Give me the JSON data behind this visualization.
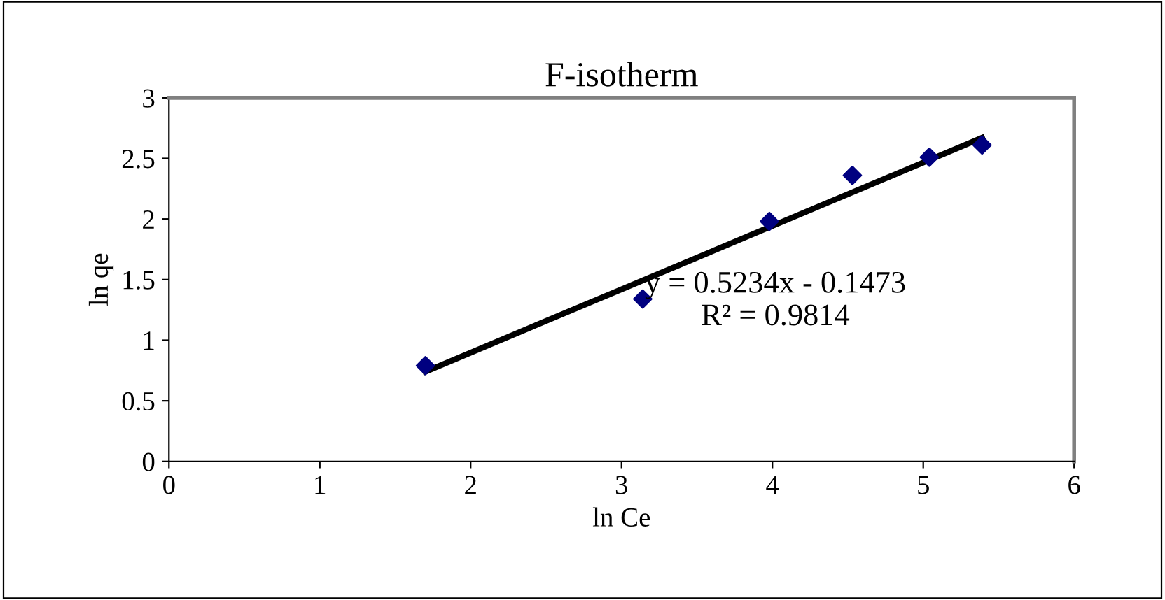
{
  "chart_data": {
    "type": "scatter",
    "title": "F-isotherm",
    "xlabel": "ln Ce",
    "ylabel": "ln qe",
    "xlim": [
      0,
      6
    ],
    "xticks": [
      0,
      1,
      2,
      3,
      4,
      5,
      6
    ],
    "ylim": [
      0,
      3
    ],
    "yticks": [
      0,
      0.5,
      1,
      1.5,
      2,
      2.5,
      3
    ],
    "grid": false,
    "legend": false,
    "series": [
      {
        "color": "#000080",
        "marker": "diamond",
        "x": [
          1.7,
          3.14,
          3.98,
          4.53,
          5.04,
          5.39
        ],
        "values": [
          0.79,
          1.34,
          1.98,
          2.36,
          2.51,
          2.61
        ]
      },
      {
        "type": "line",
        "color": "#000000",
        "marker": "none",
        "line_style": "solid",
        "x": [
          1.7,
          5.39
        ],
        "values": [
          0.74,
          2.67
        ]
      }
    ],
    "annotations": [
      "y = 0.5234x - 0.1473\nR² = 0.9814"
    ]
  }
}
